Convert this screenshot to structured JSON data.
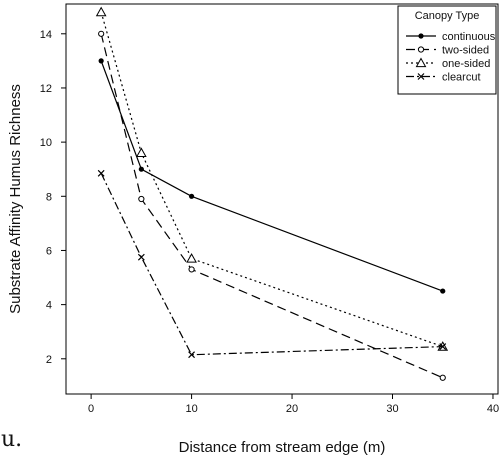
{
  "panel_letter": "u.",
  "chart_data": {
    "type": "line",
    "xlabel": "Distance from stream edge (m)",
    "ylabel": "Substrate Affinity Humus Richness",
    "xlim": [
      -2.5,
      40.5
    ],
    "ylim": [
      0.7,
      15.1
    ],
    "xticks": [
      0,
      10,
      20,
      30,
      40
    ],
    "yticks": [
      2,
      4,
      6,
      8,
      10,
      12,
      14
    ],
    "grid": false,
    "legend": {
      "title": "Canopy Type",
      "placement": "top-right"
    },
    "series": [
      {
        "name": "continuous",
        "marker": "dot",
        "dash": "",
        "x": [
          1,
          5,
          10,
          35
        ],
        "y": [
          13.0,
          9.0,
          8.0,
          4.5
        ]
      },
      {
        "name": "two-sided",
        "marker": "circle",
        "dash": "9,5",
        "x": [
          1,
          5,
          10,
          35
        ],
        "y": [
          14.0,
          7.9,
          5.3,
          1.3
        ]
      },
      {
        "name": "one-sided",
        "marker": "triangle",
        "dash": "2,3",
        "x": [
          1,
          5,
          10,
          35
        ],
        "y": [
          14.8,
          9.6,
          5.7,
          2.45
        ]
      },
      {
        "name": "clearcut",
        "marker": "x",
        "dash": "8,3,2,3",
        "x": [
          1,
          5,
          10,
          35
        ],
        "y": [
          8.85,
          5.75,
          2.15,
          2.45
        ]
      }
    ]
  }
}
